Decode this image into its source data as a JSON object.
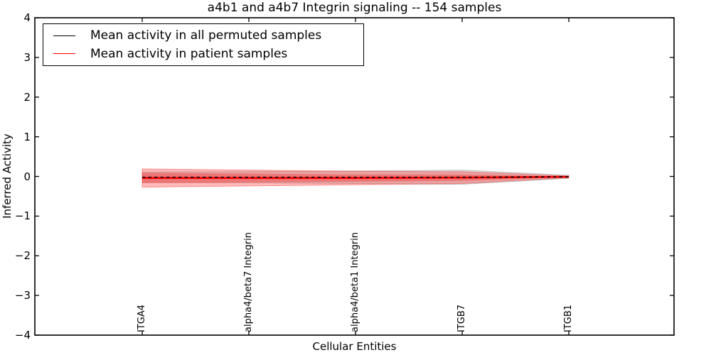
{
  "figure": {
    "title": "a4b1 and a4b7 Integrin signaling -- 154 samples",
    "xlabel": "Cellular Entities",
    "ylabel": "Inferred Activity"
  },
  "chart_data": {
    "type": "line",
    "title": "a4b1 and a4b7 Integrin signaling -- 154 samples",
    "xlabel": "Cellular Entities",
    "ylabel": "Inferred Activity",
    "ylim": [
      -4,
      4
    ],
    "yticks": [
      4,
      3,
      2,
      1,
      0,
      -1,
      -2,
      -3,
      -4
    ],
    "categories": [
      "ITGA4",
      "alpha4/beta7 Integrin",
      "alpha4/beta1 Integrin",
      "ITGB7",
      "ITGB1"
    ],
    "grid": false,
    "legend_position": "upper left",
    "series": [
      {
        "name": "Mean activity in all permuted samples",
        "color": "#000000",
        "line_style": "dashed",
        "mean": [
          -0.02,
          -0.02,
          -0.02,
          -0.02,
          -0.01
        ],
        "std": [
          0.13,
          0.14,
          0.16,
          0.18,
          0.04
        ],
        "band_fill": "rgba(0,0,0,0.13)",
        "band_edge": "rgba(0,0,0,0.18)"
      },
      {
        "name": "Mean activity in patient samples",
        "color": "#ff0000",
        "line_style": "solid",
        "mean": [
          -0.04,
          -0.04,
          -0.04,
          -0.03,
          -0.01
        ],
        "std": [
          0.23,
          0.2,
          0.17,
          0.15,
          0.02
        ],
        "sem": [
          0.13,
          0.11,
          0.09,
          0.08,
          0.01
        ],
        "band_fill": "rgba(255,0,0,0.27)",
        "band_edge": "rgba(255,0,0,0.35)"
      }
    ]
  }
}
